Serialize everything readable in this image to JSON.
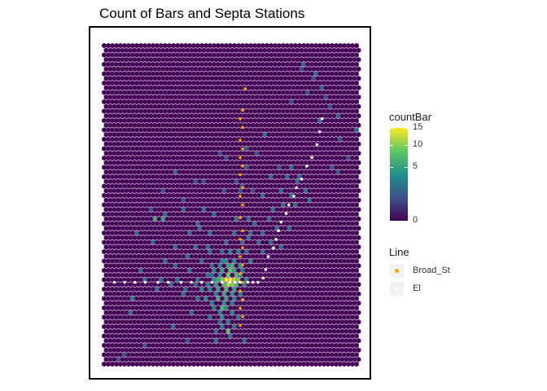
{
  "chart_data": {
    "type": "heatmap",
    "title": "Count of Bars and Septa Stations",
    "fill_legend": {
      "title": "countBar",
      "ticks": [
        15,
        10,
        5,
        0
      ],
      "range": [
        0,
        15
      ],
      "colormap": "viridis",
      "scale": "sqrt"
    },
    "line_legend": {
      "title": "Line",
      "entries": [
        {
          "name": "Broad_St",
          "color": "#f5a30a"
        },
        {
          "name": "El",
          "color": "#ffffff"
        }
      ]
    },
    "hex_grid": {
      "columns": 63,
      "rows": 69,
      "base_color": "#440154",
      "edge_color": "#6b3a82"
    },
    "hex_counts": [
      [
        49,
        4,
        2
      ],
      [
        48,
        5,
        1
      ],
      [
        52,
        6,
        2
      ],
      [
        51,
        7,
        1
      ],
      [
        53,
        9,
        2
      ],
      [
        50,
        10,
        1
      ],
      [
        54,
        11,
        1
      ],
      [
        46,
        12,
        1
      ],
      [
        55,
        13,
        1
      ],
      [
        57,
        15,
        2
      ],
      [
        53,
        16,
        2
      ],
      [
        62,
        18,
        2
      ],
      [
        58,
        20,
        1
      ],
      [
        39,
        19,
        2
      ],
      [
        60,
        24,
        1
      ],
      [
        56,
        26,
        1
      ],
      [
        57,
        27,
        1
      ],
      [
        17,
        27,
        2
      ],
      [
        35,
        22,
        1
      ],
      [
        37,
        23,
        1
      ],
      [
        28,
        23,
        1
      ],
      [
        30,
        24,
        1
      ],
      [
        43,
        26,
        1
      ],
      [
        46,
        26,
        2
      ],
      [
        45,
        28,
        2
      ],
      [
        41,
        28,
        2
      ],
      [
        48,
        28,
        2
      ],
      [
        47,
        29,
        2
      ],
      [
        32,
        29,
        1
      ],
      [
        24,
        29,
        1
      ],
      [
        34,
        30,
        1
      ],
      [
        29,
        31,
        1
      ],
      [
        33,
        31,
        1
      ],
      [
        36,
        31,
        1
      ],
      [
        43,
        31,
        2
      ],
      [
        49,
        31,
        2
      ],
      [
        46,
        32,
        2
      ],
      [
        39,
        32,
        2
      ],
      [
        50,
        33,
        2
      ],
      [
        44,
        34,
        2
      ],
      [
        47,
        34,
        2
      ],
      [
        19,
        35,
        2
      ],
      [
        24,
        35,
        2
      ],
      [
        27,
        36,
        2
      ],
      [
        41,
        35,
        2
      ],
      [
        11,
        35,
        1
      ],
      [
        15,
        36,
        2
      ],
      [
        12,
        37,
        6
      ],
      [
        14,
        37,
        5
      ],
      [
        32,
        37,
        2
      ],
      [
        35,
        37,
        2
      ],
      [
        23,
        38,
        2
      ],
      [
        37,
        38,
        2
      ],
      [
        26,
        40,
        2
      ],
      [
        39,
        40,
        2
      ],
      [
        8,
        40,
        2
      ],
      [
        12,
        42,
        2
      ],
      [
        30,
        42,
        2
      ],
      [
        35,
        41,
        2
      ],
      [
        41,
        42,
        2
      ],
      [
        17,
        43,
        2
      ],
      [
        22,
        43,
        2
      ],
      [
        43,
        43,
        2
      ],
      [
        26,
        44,
        2
      ],
      [
        29,
        44,
        2
      ],
      [
        31,
        44,
        3
      ],
      [
        33,
        44,
        3
      ],
      [
        39,
        44,
        2
      ],
      [
        24,
        46,
        2
      ],
      [
        29,
        46,
        3
      ],
      [
        30,
        46,
        4
      ],
      [
        32,
        46,
        3
      ],
      [
        36,
        46,
        3
      ],
      [
        17,
        47,
        2
      ],
      [
        26,
        47,
        2
      ],
      [
        28,
        47,
        3
      ],
      [
        30,
        47,
        5
      ],
      [
        31,
        47,
        6
      ],
      [
        33,
        47,
        4
      ],
      [
        21,
        48,
        2
      ],
      [
        27,
        48,
        3
      ],
      [
        29,
        48,
        5
      ],
      [
        31,
        48,
        8
      ],
      [
        32,
        48,
        5
      ],
      [
        34,
        48,
        3
      ],
      [
        25,
        49,
        2
      ],
      [
        26,
        49,
        2
      ],
      [
        28,
        49,
        4
      ],
      [
        30,
        49,
        9
      ],
      [
        32,
        49,
        7
      ],
      [
        33,
        49,
        4
      ],
      [
        10,
        50,
        2
      ],
      [
        14,
        50,
        2
      ],
      [
        18,
        50,
        2
      ],
      [
        23,
        50,
        2
      ],
      [
        27,
        50,
        4
      ],
      [
        28,
        50,
        6
      ],
      [
        29,
        50,
        9
      ],
      [
        30,
        50,
        15
      ],
      [
        31,
        50,
        15
      ],
      [
        32,
        50,
        12
      ],
      [
        33,
        50,
        10
      ],
      [
        35,
        50,
        3
      ],
      [
        16,
        51,
        2
      ],
      [
        22,
        51,
        2
      ],
      [
        25,
        51,
        3
      ],
      [
        27,
        51,
        5
      ],
      [
        29,
        51,
        8
      ],
      [
        30,
        51,
        12
      ],
      [
        31,
        51,
        10
      ],
      [
        32,
        51,
        7
      ],
      [
        34,
        51,
        3
      ],
      [
        13,
        52,
        2
      ],
      [
        20,
        52,
        2
      ],
      [
        24,
        52,
        3
      ],
      [
        26,
        52,
        3
      ],
      [
        28,
        52,
        5
      ],
      [
        30,
        52,
        7
      ],
      [
        32,
        52,
        5
      ],
      [
        19,
        53,
        2
      ],
      [
        27,
        53,
        3
      ],
      [
        29,
        53,
        5
      ],
      [
        31,
        53,
        4
      ],
      [
        33,
        53,
        3
      ],
      [
        23,
        54,
        2
      ],
      [
        25,
        54,
        3
      ],
      [
        28,
        54,
        6
      ],
      [
        30,
        54,
        5
      ],
      [
        32,
        54,
        3
      ],
      [
        26,
        55,
        3
      ],
      [
        29,
        55,
        4
      ],
      [
        31,
        55,
        3
      ],
      [
        27,
        56,
        3
      ],
      [
        29,
        56,
        7
      ],
      [
        30,
        56,
        4
      ],
      [
        21,
        57,
        2
      ],
      [
        28,
        57,
        3
      ],
      [
        31,
        57,
        3
      ],
      [
        26,
        58,
        2
      ],
      [
        29,
        58,
        4
      ],
      [
        30,
        59,
        3
      ],
      [
        28,
        59,
        2
      ],
      [
        32,
        60,
        2
      ],
      [
        29,
        60,
        3
      ],
      [
        30,
        61,
        8
      ],
      [
        27,
        61,
        2
      ],
      [
        31,
        62,
        2
      ],
      [
        33,
        58,
        2
      ],
      [
        7,
        54,
        3
      ],
      [
        6,
        57,
        2
      ],
      [
        17,
        60,
        2
      ],
      [
        20,
        63,
        1
      ],
      [
        27,
        63,
        2
      ],
      [
        10,
        64,
        1
      ],
      [
        34,
        63,
        2
      ],
      [
        5,
        66,
        1
      ],
      [
        3,
        67,
        1
      ],
      [
        40,
        37,
        2
      ],
      [
        45,
        39,
        2
      ],
      [
        14,
        31,
        1
      ],
      [
        19,
        33,
        1
      ],
      [
        35,
        26,
        1
      ],
      [
        22,
        29,
        1
      ],
      [
        23,
        39,
        2
      ],
      [
        36,
        40,
        2
      ],
      [
        34,
        42,
        2
      ],
      [
        32,
        40,
        2
      ],
      [
        42,
        39,
        2
      ],
      [
        21,
        40,
        2
      ],
      [
        38,
        42,
        2
      ],
      [
        35,
        44,
        2
      ],
      [
        25,
        43,
        2
      ],
      [
        20,
        45,
        2
      ],
      [
        9,
        48,
        2
      ],
      [
        15,
        46,
        2
      ]
    ],
    "station_points": {
      "Broad_St": [
        [
          15,
          10
        ],
        [
          14,
          15
        ],
        [
          13,
          17
        ],
        [
          14,
          19
        ],
        [
          13,
          22
        ],
        [
          14,
          24
        ],
        [
          13,
          26
        ],
        [
          14,
          28
        ],
        [
          13,
          30
        ],
        [
          14,
          33
        ],
        [
          13,
          35
        ],
        [
          14,
          37
        ],
        [
          13,
          40
        ],
        [
          14,
          43
        ],
        [
          13,
          45
        ],
        [
          14,
          47
        ],
        [
          13,
          49
        ],
        [
          14,
          51
        ],
        [
          13,
          53
        ],
        [
          14,
          55
        ],
        [
          13,
          57
        ],
        [
          14,
          59
        ],
        [
          13,
          61
        ],
        [
          14,
          63
        ],
        [
          13,
          65
        ]
      ],
      "El": [
        [
          -36,
          55
        ],
        [
          -32,
          55
        ],
        [
          -28,
          55
        ],
        [
          -24,
          55
        ],
        [
          -19,
          55
        ],
        [
          -15,
          55
        ],
        [
          -10,
          55
        ],
        [
          -6,
          55
        ],
        [
          -2,
          55
        ],
        [
          2,
          55
        ],
        [
          6,
          55
        ],
        [
          9,
          55
        ],
        [
          11,
          55
        ],
        [
          13,
          55
        ],
        [
          16,
          55
        ],
        [
          18,
          55
        ],
        [
          20,
          55
        ],
        [
          22,
          54
        ],
        [
          23,
          52
        ],
        [
          24,
          49
        ],
        [
          26,
          47
        ],
        [
          27,
          45
        ],
        [
          28,
          43
        ],
        [
          29,
          41
        ],
        [
          31,
          39
        ],
        [
          32,
          37
        ],
        [
          34,
          35
        ],
        [
          35,
          33
        ],
        [
          37,
          31
        ],
        [
          39,
          28
        ],
        [
          41,
          26
        ],
        [
          43,
          23
        ],
        [
          44,
          20
        ],
        [
          45,
          17
        ]
      ]
    },
    "x_extent": [
      -40,
      60
    ],
    "y_extent": [
      0,
      74
    ],
    "grid": false
  }
}
